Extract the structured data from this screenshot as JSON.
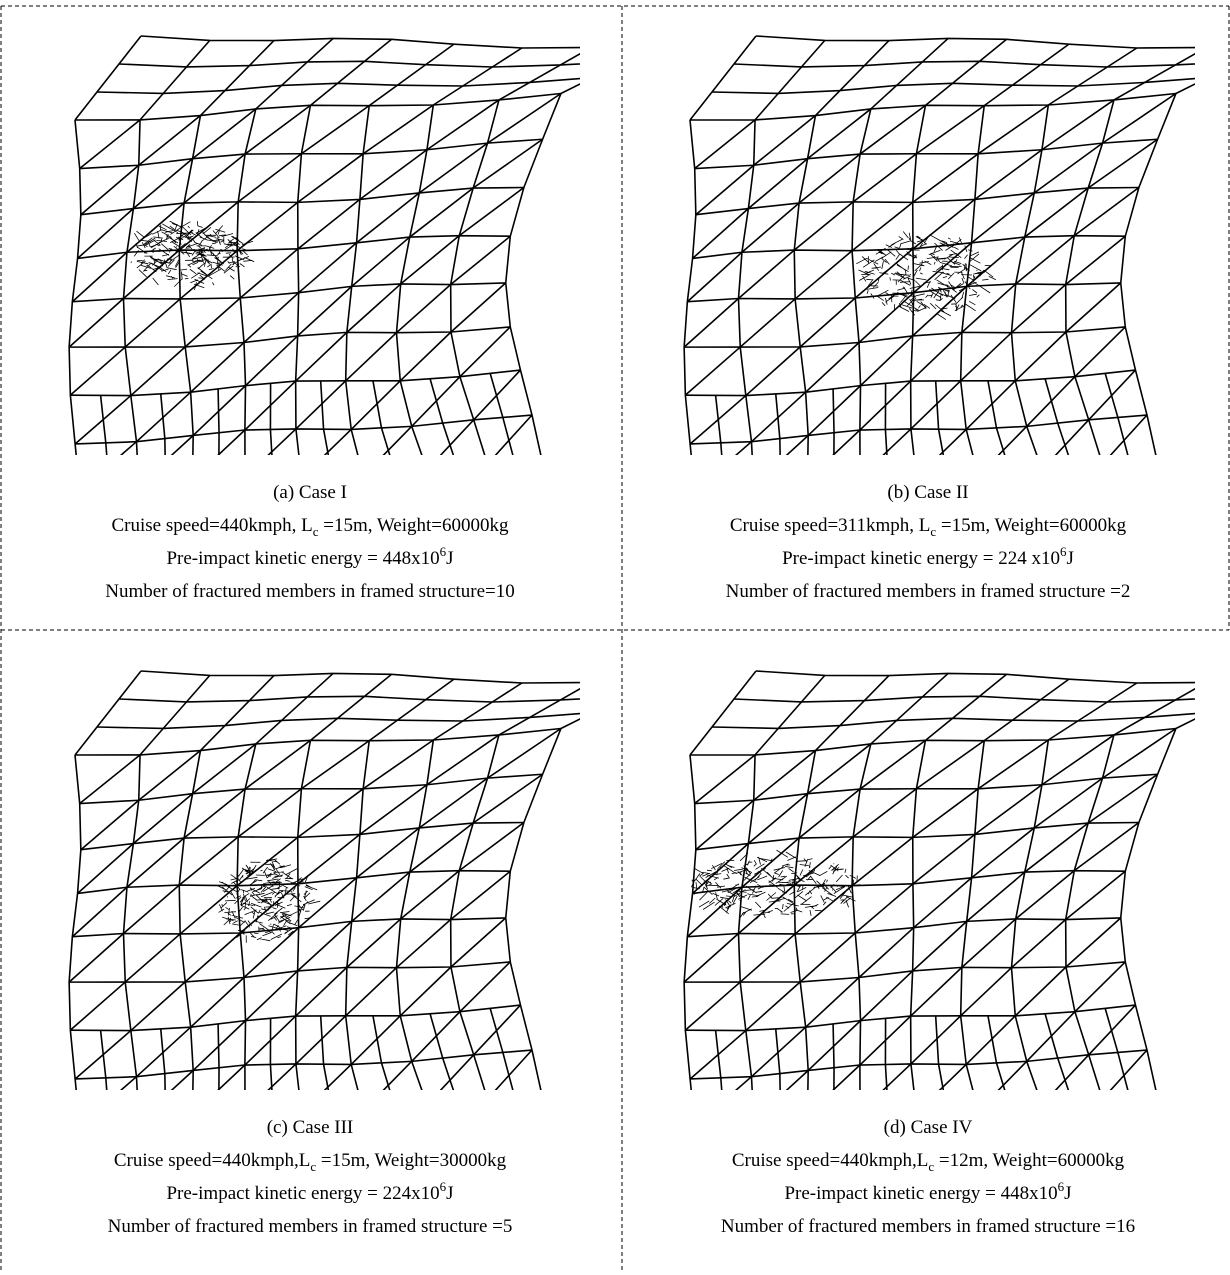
{
  "panels": [
    {
      "label": "(a) Case I",
      "speed": {
        "before": "Cruise speed=440kmph, L",
        "sub": "c",
        "after": " =15m, Weight=60000kg"
      },
      "energy": {
        "before": "Pre-impact kinetic energy = 448x10",
        "sup": "6",
        "after": "J"
      },
      "fractured": "Number of fractured members in framed structure=10"
    },
    {
      "label": "(b) Case II",
      "speed": {
        "before": "Cruise speed=311kmph, L",
        "sub": "c",
        "after": " =15m, Weight=60000kg"
      },
      "energy": {
        "before": "Pre-impact kinetic energy = 224 x10",
        "sup": "6",
        "after": "J"
      },
      "fractured": "Number of fractured members in framed structure =2"
    },
    {
      "label": "(c) Case III",
      "speed": {
        "before": "Cruise speed=440kmph,L",
        "sub": "c",
        "after": " =15m, Weight=30000kg"
      },
      "energy": {
        "before": "Pre-impact kinetic energy = 224x10",
        "sup": "6",
        "after": "J"
      },
      "fractured": "Number of fractured members in framed structure =5"
    },
    {
      "label": "(d) Case IV",
      "speed": {
        "before": "Cruise speed=440kmph,L",
        "sub": "c",
        "after": " =12m, Weight=60000kg"
      },
      "energy": {
        "before": "Pre-impact kinetic energy = 448x10",
        "sup": "6",
        "after": "J"
      },
      "fractured": "Number of fractured members in framed structure =16"
    }
  ]
}
